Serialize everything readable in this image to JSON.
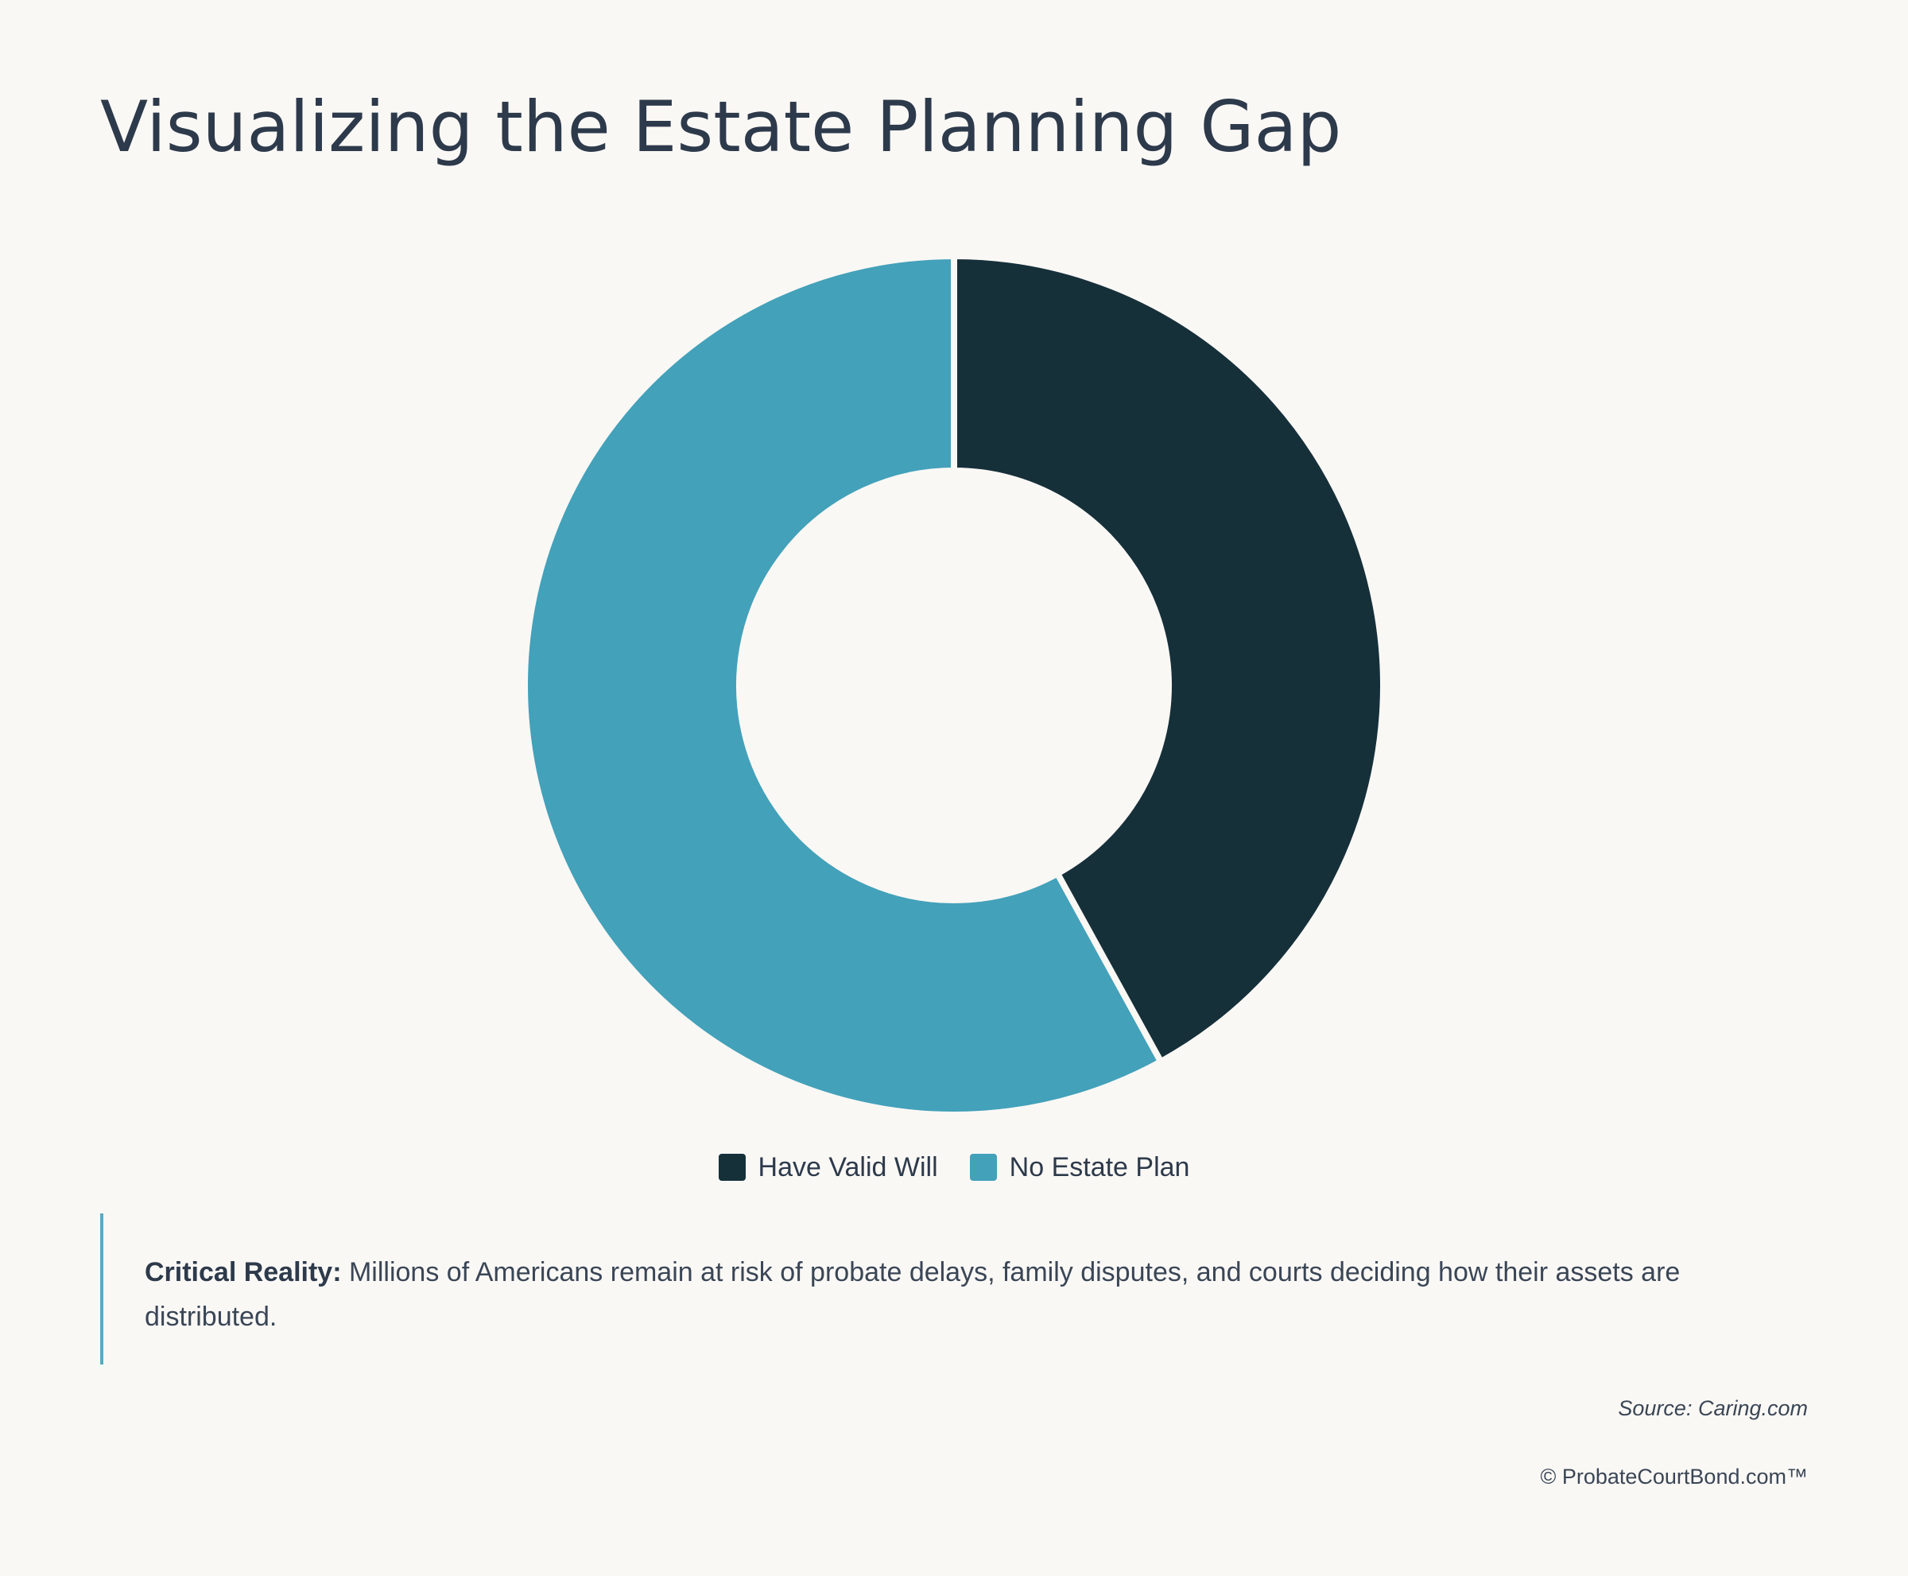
{
  "chart_data": {
    "type": "pie",
    "title": "Visualizing the Estate Planning Gap",
    "categories": [
      "Have Valid Will",
      "No Estate Plan"
    ],
    "values": [
      42,
      58
    ],
    "colors": [
      "#16303a",
      "#43a1ba"
    ],
    "donut": true,
    "legend_position": "bottom-center"
  },
  "note": {
    "label": "Critical Reality:",
    "text": " Millions of Americans remain at risk of probate delays, family disputes, and courts deciding how their assets are distributed."
  },
  "source": "Source: Caring.com",
  "copyright": "© ProbateCourtBond.com™"
}
